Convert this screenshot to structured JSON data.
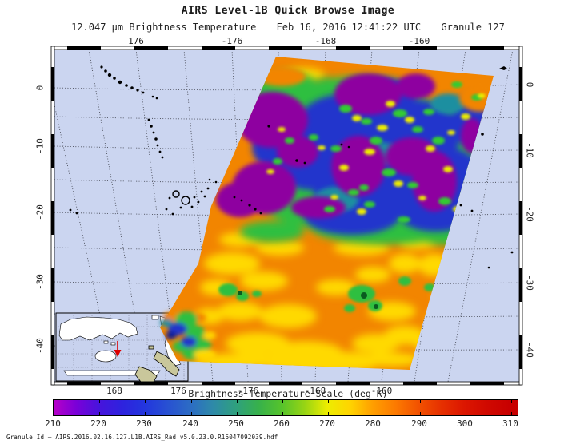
{
  "header": {
    "title": "AIRS Level-1B Quick Browse Image",
    "product": "12.047 μm Brightness Temperature",
    "datetime": "Feb 16, 2016 12:41:22 UTC",
    "granule": "Granule 127"
  },
  "axes": {
    "top": [
      "176",
      "-176",
      "-168",
      "-160"
    ],
    "bottom": [
      "168",
      "176",
      "-176",
      "-168",
      "-160"
    ],
    "left": [
      "0",
      "-10",
      "-20",
      "-30",
      "-40"
    ],
    "right": [
      "0",
      "-10",
      "-20",
      "-30",
      "-40"
    ]
  },
  "colorbar": {
    "title": "Brightness Temperature Scale (deg K)",
    "min": 210,
    "max": 310,
    "ticks": [
      "210",
      "220",
      "230",
      "240",
      "250",
      "260",
      "270",
      "280",
      "290",
      "300",
      "310"
    ],
    "stops": [
      {
        "value": 210,
        "color": "#b800c8"
      },
      {
        "value": 215,
        "color": "#7a00d8"
      },
      {
        "value": 220,
        "color": "#4714dc"
      },
      {
        "value": 225,
        "color": "#2e22de"
      },
      {
        "value": 230,
        "color": "#2336de"
      },
      {
        "value": 235,
        "color": "#2851d2"
      },
      {
        "value": 240,
        "color": "#2c6cc4"
      },
      {
        "value": 245,
        "color": "#2e8aa8"
      },
      {
        "value": 250,
        "color": "#2fa07e"
      },
      {
        "value": 255,
        "color": "#37b14b"
      },
      {
        "value": 260,
        "color": "#55c32c"
      },
      {
        "value": 265,
        "color": "#97d414"
      },
      {
        "value": 270,
        "color": "#eded00"
      },
      {
        "value": 275,
        "color": "#ffd400"
      },
      {
        "value": 280,
        "color": "#ff9e00"
      },
      {
        "value": 285,
        "color": "#fc7a00"
      },
      {
        "value": 290,
        "color": "#f25200"
      },
      {
        "value": 295,
        "color": "#e63000"
      },
      {
        "value": 300,
        "color": "#dc1600"
      },
      {
        "value": 305,
        "color": "#d00900"
      },
      {
        "value": 310,
        "color": "#c80000"
      }
    ]
  },
  "inset": {
    "description": "global locator map with granule position marker",
    "marker": "red-arrow"
  },
  "footer": {
    "granule_label": "Granule Id —",
    "granule_id": "AIRS.2016.02.16.127.L1B.AIRS_Rad.v5.0.23.0.R16047092039.hdf"
  },
  "chart_data": {
    "type": "heatmap",
    "title": "AIRS Level-1B Quick Browse Image",
    "subtitle": "12.047 μm Brightness Temperature — Feb 16, 2016 12:41:22 UTC — Granule 127",
    "projection": "geographic lat/lon map of the South Pacific with oblique satellite swath",
    "lon_ticks_top": [
      176,
      -176,
      -168,
      -160
    ],
    "lon_ticks_bottom": [
      168,
      176,
      -176,
      -168,
      -160
    ],
    "lat_ticks": [
      0,
      -10,
      -20,
      -30,
      -40
    ],
    "graticule": {
      "lon_step_deg": 4,
      "lat_step_deg": 5,
      "style": "dotted"
    },
    "colorbar": {
      "label": "Brightness Temperature Scale (deg K)",
      "range_K": [
        210,
        310
      ],
      "tick_step_K": 10,
      "palette_order": "purple, blue, teal, green, yellow, orange, red"
    },
    "swath_extent_estimate": {
      "lon": "about 170E to 157W",
      "lat": "about +2 to -44"
    },
    "regions": [
      {
        "region": "northern/central swath (~0 to -22 lat)",
        "brightness_temp_K": "210-250",
        "rendered_color": "purple/blue",
        "note": "coldest cloud tops"
      },
      {
        "region": "filaments across upper swath",
        "brightness_temp_K": "250-275",
        "rendered_color": "green/yellow"
      },
      {
        "region": "southern swath (~-22 to -42 lat)",
        "brightness_temp_K": "275-300",
        "rendered_color": "orange with yellow mottling",
        "note": "warm mostly-clear ocean"
      },
      {
        "region": "bottom-left corner near New Zealand",
        "brightness_temp_K": "220-260",
        "rendered_color": "blue/green patches"
      }
    ],
    "inset_marker": "red arrow in the southwest Pacific marking granule location"
  }
}
